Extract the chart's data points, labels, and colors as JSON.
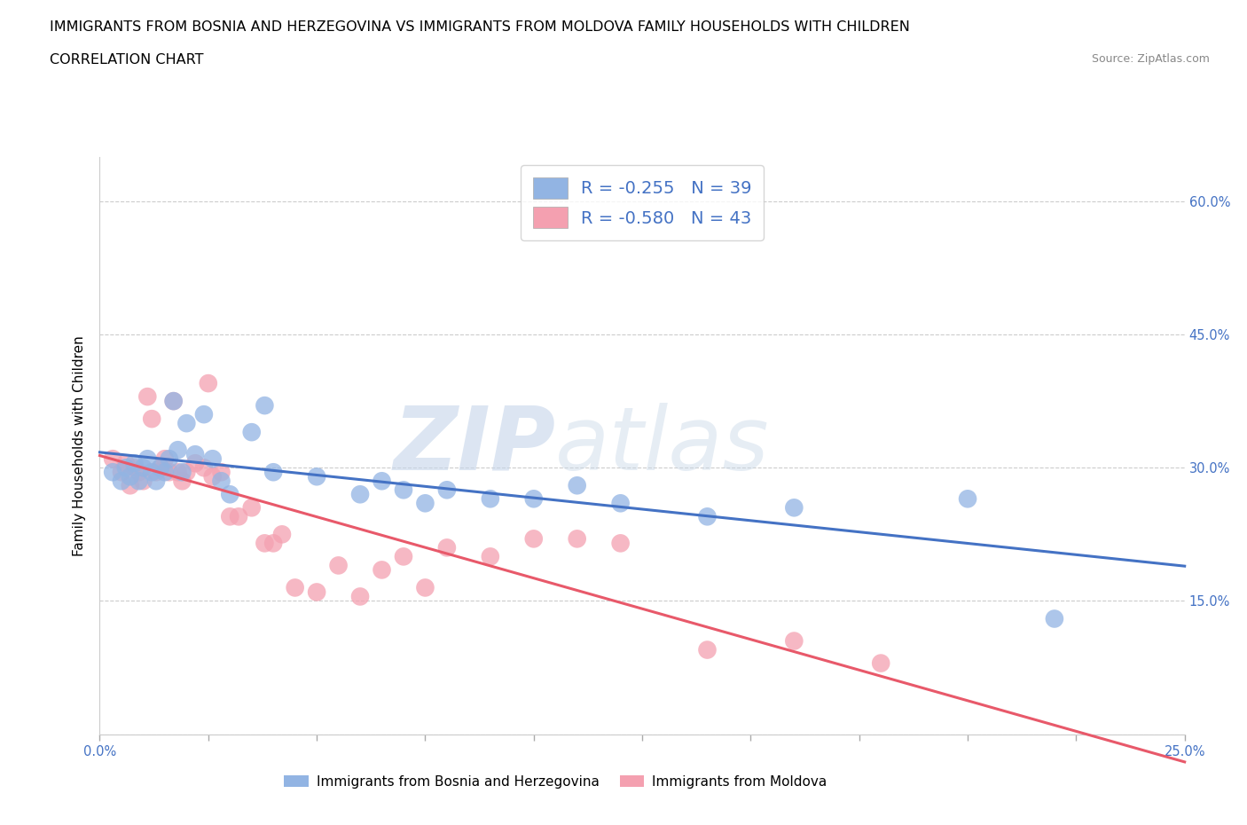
{
  "title_line1": "IMMIGRANTS FROM BOSNIA AND HERZEGOVINA VS IMMIGRANTS FROM MOLDOVA FAMILY HOUSEHOLDS WITH CHILDREN",
  "title_line2": "CORRELATION CHART",
  "source": "Source: ZipAtlas.com",
  "ylabel": "Family Households with Children",
  "watermark_part1": "ZIP",
  "watermark_part2": "atlas",
  "xlim": [
    0.0,
    0.25
  ],
  "ylim": [
    0.0,
    0.65
  ],
  "x_ticks_major": [
    0.0,
    0.25
  ],
  "x_ticks_minor": [
    0.0,
    0.025,
    0.05,
    0.075,
    0.1,
    0.125,
    0.15,
    0.175,
    0.2,
    0.225,
    0.25
  ],
  "y_ticks": [
    0.0,
    0.15,
    0.3,
    0.45,
    0.6
  ],
  "right_y_labels": [
    "",
    "15.0%",
    "30.0%",
    "45.0%",
    "60.0%"
  ],
  "bosnia_color": "#92b4e3",
  "moldova_color": "#f4a0b0",
  "bosnia_line_color": "#4472c4",
  "moldova_line_color": "#e8596a",
  "bosnia_R": -0.255,
  "bosnia_N": 39,
  "moldova_R": -0.58,
  "moldova_N": 43,
  "legend_label1": "Immigrants from Bosnia and Herzegovina",
  "legend_label2": "Immigrants from Moldova",
  "bosnia_x": [
    0.003,
    0.005,
    0.006,
    0.007,
    0.008,
    0.009,
    0.01,
    0.011,
    0.012,
    0.013,
    0.014,
    0.015,
    0.016,
    0.017,
    0.018,
    0.019,
    0.02,
    0.022,
    0.024,
    0.026,
    0.028,
    0.03,
    0.035,
    0.038,
    0.04,
    0.05,
    0.06,
    0.065,
    0.07,
    0.075,
    0.08,
    0.09,
    0.1,
    0.11,
    0.12,
    0.14,
    0.16,
    0.2,
    0.22
  ],
  "bosnia_y": [
    0.295,
    0.285,
    0.3,
    0.29,
    0.305,
    0.285,
    0.3,
    0.31,
    0.295,
    0.285,
    0.3,
    0.295,
    0.31,
    0.375,
    0.32,
    0.295,
    0.35,
    0.315,
    0.36,
    0.31,
    0.285,
    0.27,
    0.34,
    0.37,
    0.295,
    0.29,
    0.27,
    0.285,
    0.275,
    0.26,
    0.275,
    0.265,
    0.265,
    0.28,
    0.26,
    0.245,
    0.255,
    0.265,
    0.13
  ],
  "moldova_x": [
    0.003,
    0.005,
    0.006,
    0.007,
    0.008,
    0.009,
    0.01,
    0.011,
    0.012,
    0.013,
    0.014,
    0.015,
    0.016,
    0.017,
    0.018,
    0.019,
    0.02,
    0.022,
    0.024,
    0.025,
    0.026,
    0.028,
    0.03,
    0.032,
    0.035,
    0.038,
    0.04,
    0.042,
    0.045,
    0.05,
    0.055,
    0.06,
    0.065,
    0.07,
    0.075,
    0.08,
    0.09,
    0.1,
    0.11,
    0.12,
    0.14,
    0.16,
    0.18
  ],
  "moldova_y": [
    0.31,
    0.295,
    0.305,
    0.28,
    0.3,
    0.295,
    0.285,
    0.38,
    0.355,
    0.295,
    0.3,
    0.31,
    0.295,
    0.375,
    0.295,
    0.285,
    0.295,
    0.305,
    0.3,
    0.395,
    0.29,
    0.295,
    0.245,
    0.245,
    0.255,
    0.215,
    0.215,
    0.225,
    0.165,
    0.16,
    0.19,
    0.155,
    0.185,
    0.2,
    0.165,
    0.21,
    0.2,
    0.22,
    0.22,
    0.215,
    0.095,
    0.105,
    0.08
  ],
  "grid_color": "#cccccc",
  "background_color": "#ffffff",
  "title_fontsize": 11.5,
  "tick_fontsize": 10.5,
  "axis_label_fontsize": 11
}
